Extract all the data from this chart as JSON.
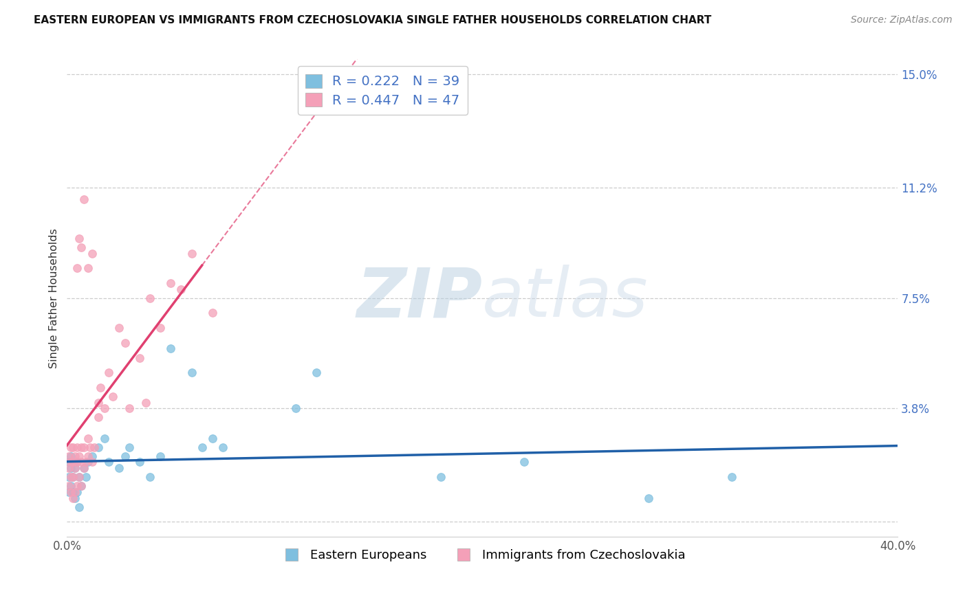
{
  "title": "EASTERN EUROPEAN VS IMMIGRANTS FROM CZECHOSLOVAKIA SINGLE FATHER HOUSEHOLDS CORRELATION CHART",
  "source": "Source: ZipAtlas.com",
  "ylabel": "Single Father Households",
  "xlim": [
    0.0,
    0.4
  ],
  "ylim": [
    -0.005,
    0.155
  ],
  "xticks": [
    0.0,
    0.1,
    0.2,
    0.3,
    0.4
  ],
  "xtick_labels": [
    "0.0%",
    "",
    "",
    "",
    "40.0%"
  ],
  "ytick_vals": [
    0.0,
    0.038,
    0.075,
    0.112,
    0.15
  ],
  "ytick_labels": [
    "",
    "3.8%",
    "7.5%",
    "11.2%",
    "15.0%"
  ],
  "blue_color": "#7fbfdf",
  "pink_color": "#f4a0b8",
  "blue_line_color": "#2060a8",
  "pink_line_color": "#e04070",
  "axis_label_color": "#4472c4",
  "legend_label_blue": "Eastern Europeans",
  "legend_label_pink": "Immigrants from Czechoslovakia",
  "watermark_zip": "ZIP",
  "watermark_atlas": "atlas",
  "background_color": "#ffffff",
  "title_color": "#111111",
  "source_color": "#888888",
  "blue_R": 0.222,
  "blue_N": 39,
  "pink_R": 0.447,
  "pink_N": 47,
  "blue_scatter_x": [
    0.001,
    0.001,
    0.001,
    0.002,
    0.002,
    0.002,
    0.003,
    0.003,
    0.004,
    0.004,
    0.005,
    0.005,
    0.006,
    0.006,
    0.007,
    0.008,
    0.009,
    0.01,
    0.012,
    0.015,
    0.018,
    0.02,
    0.025,
    0.028,
    0.03,
    0.035,
    0.04,
    0.045,
    0.05,
    0.06,
    0.065,
    0.07,
    0.075,
    0.11,
    0.12,
    0.18,
    0.22,
    0.28,
    0.32
  ],
  "blue_scatter_y": [
    0.01,
    0.015,
    0.02,
    0.012,
    0.018,
    0.022,
    0.01,
    0.015,
    0.008,
    0.018,
    0.01,
    0.02,
    0.005,
    0.015,
    0.012,
    0.018,
    0.015,
    0.02,
    0.022,
    0.025,
    0.028,
    0.02,
    0.018,
    0.022,
    0.025,
    0.02,
    0.015,
    0.022,
    0.058,
    0.05,
    0.025,
    0.028,
    0.025,
    0.038,
    0.05,
    0.015,
    0.02,
    0.008,
    0.015
  ],
  "pink_scatter_x": [
    0.001,
    0.001,
    0.001,
    0.002,
    0.002,
    0.002,
    0.002,
    0.003,
    0.003,
    0.003,
    0.003,
    0.004,
    0.004,
    0.004,
    0.005,
    0.005,
    0.005,
    0.006,
    0.006,
    0.007,
    0.007,
    0.007,
    0.008,
    0.008,
    0.009,
    0.01,
    0.01,
    0.011,
    0.012,
    0.013,
    0.015,
    0.015,
    0.016,
    0.018,
    0.02,
    0.022,
    0.025,
    0.028,
    0.03,
    0.035,
    0.038,
    0.04,
    0.045,
    0.05,
    0.055,
    0.06,
    0.07
  ],
  "pink_scatter_y": [
    0.012,
    0.018,
    0.022,
    0.01,
    0.015,
    0.02,
    0.025,
    0.008,
    0.015,
    0.02,
    0.025,
    0.01,
    0.018,
    0.022,
    0.012,
    0.02,
    0.025,
    0.015,
    0.022,
    0.012,
    0.02,
    0.025,
    0.018,
    0.025,
    0.02,
    0.022,
    0.028,
    0.025,
    0.02,
    0.025,
    0.04,
    0.035,
    0.045,
    0.038,
    0.05,
    0.042,
    0.065,
    0.06,
    0.038,
    0.055,
    0.04,
    0.075,
    0.065,
    0.08,
    0.078,
    0.09,
    0.07
  ],
  "pink_highY_x": [
    0.005,
    0.006,
    0.007,
    0.008,
    0.01,
    0.012
  ],
  "pink_highY_y": [
    0.085,
    0.095,
    0.092,
    0.108,
    0.085,
    0.09
  ]
}
